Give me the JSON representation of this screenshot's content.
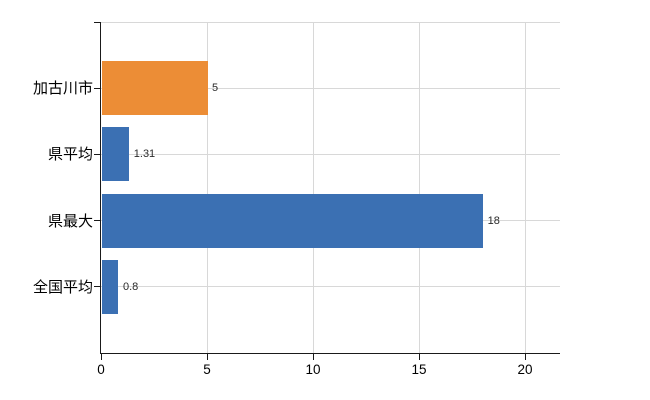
{
  "chart_data": {
    "type": "bar",
    "orientation": "horizontal",
    "categories": [
      "加古川市",
      "県平均",
      "県最大",
      "全国平均"
    ],
    "values": [
      5,
      1.31,
      18,
      0.8
    ],
    "value_labels": [
      "5",
      "1.31",
      "18",
      "0.8"
    ],
    "bar_colors": [
      "#EC8D36",
      "#3B70B3",
      "#3B70B3",
      "#3B70B3"
    ],
    "x_ticks": [
      0,
      5,
      10,
      15,
      20
    ],
    "x_tick_labels": [
      "0",
      "5",
      "10",
      "15",
      "20"
    ],
    "xlim": [
      0,
      21.65
    ],
    "grid": true,
    "legend_position": null,
    "title": "",
    "xlabel": "",
    "ylabel": "",
    "colors": {
      "bar_highlight": "#EC8D36",
      "bar_default": "#3B70B3",
      "gridline": "#d8d8d8",
      "axis": "#1a1a1a",
      "category_text": "#000000",
      "value_text": "#2b2b2b",
      "background": "#ffffff"
    }
  }
}
